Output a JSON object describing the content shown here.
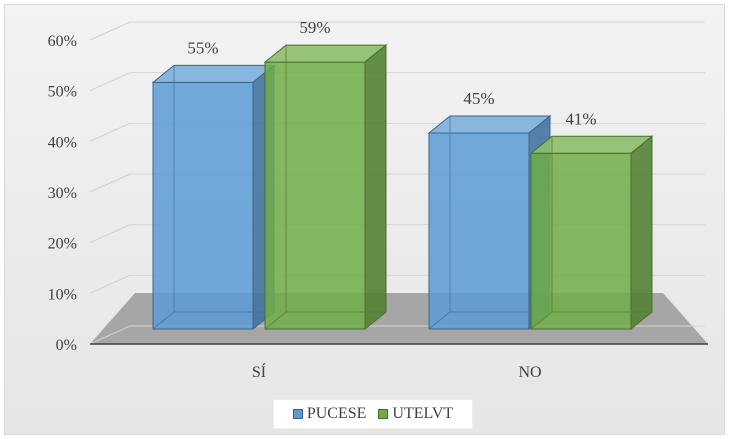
{
  "chart_data": {
    "type": "bar",
    "title": "",
    "xlabel": "",
    "ylabel": "",
    "categories": [
      "SÍ",
      "NO"
    ],
    "series": [
      {
        "name": "PUCESE",
        "values": [
          55,
          45
        ],
        "labels": [
          "55%",
          "45%"
        ],
        "color": "#5b9bd5"
      },
      {
        "name": "UTELVT",
        "values": [
          59,
          41
        ],
        "labels": [
          "59%",
          "41%"
        ],
        "color": "#70ad47"
      }
    ],
    "ylim": [
      0,
      60
    ],
    "yticks": [
      "0%",
      "10%",
      "20%",
      "30%",
      "40%",
      "50%",
      "60%"
    ],
    "grid": true,
    "legend": "bottom",
    "style": "3d-clustered-column"
  }
}
